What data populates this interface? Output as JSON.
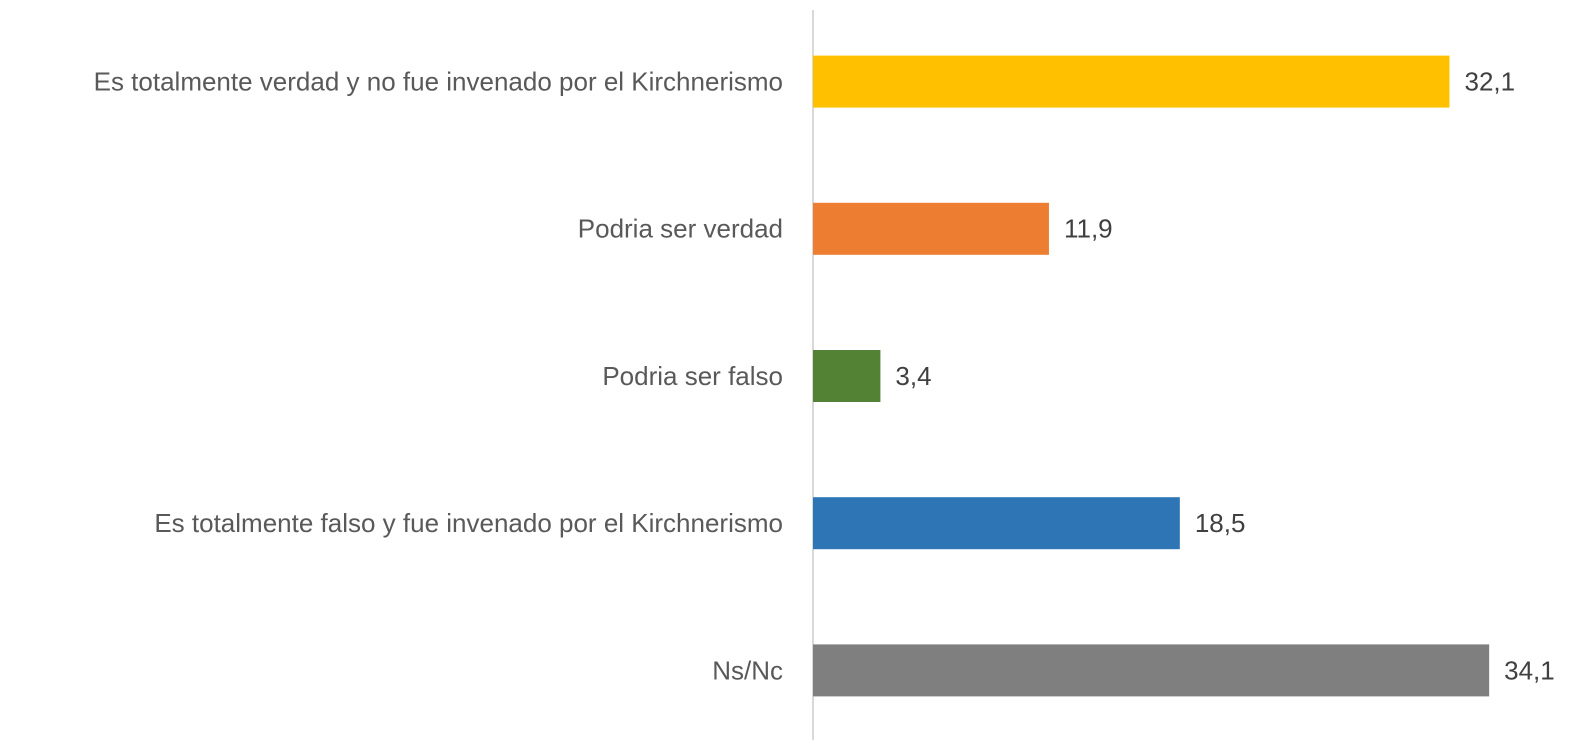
{
  "chart_data": {
    "type": "bar",
    "orientation": "horizontal",
    "categories": [
      "Es totalmente verdad y no fue invenado por el Kirchnerismo",
      "Podria ser verdad",
      "Podria ser falso",
      "Es totalmente falso y fue invenado por el Kirchnerismo",
      "Ns/Nc"
    ],
    "values": [
      32.1,
      11.9,
      3.4,
      18.5,
      34.1
    ],
    "value_labels": [
      "32,1",
      "11,9",
      "3,4",
      "18,5",
      "34,1"
    ],
    "colors": [
      "#ffc000",
      "#ed7d31",
      "#548235",
      "#2e75b6",
      "#7f7f7f"
    ],
    "xlim": [
      0,
      35
    ],
    "grid": false
  }
}
